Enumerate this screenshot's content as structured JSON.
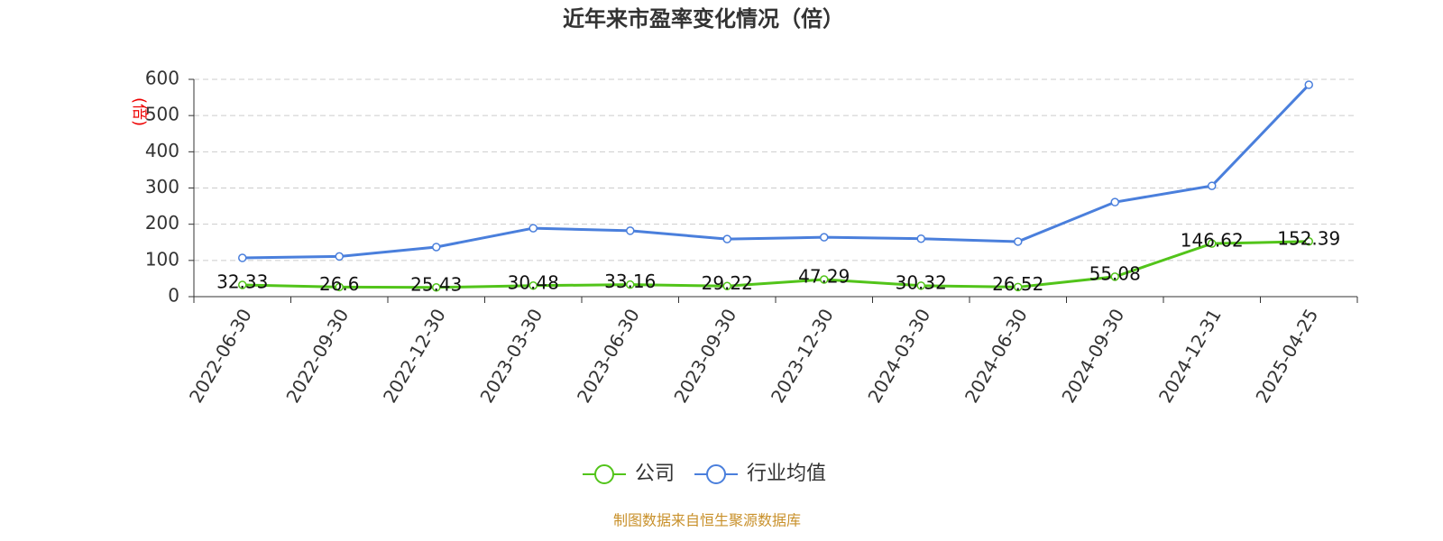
{
  "chart_data": {
    "type": "line",
    "title": "近年来市盈率变化情况（倍）",
    "y_label": "(倍)",
    "source": "制图数据来自恒生聚源数据库",
    "categories": [
      "2022-06-30",
      "2022-09-30",
      "2022-12-30",
      "2023-03-30",
      "2023-06-30",
      "2023-09-30",
      "2023-12-30",
      "2024-03-30",
      "2024-06-30",
      "2024-09-30",
      "2024-12-31",
      "2025-04-25"
    ],
    "series": [
      {
        "name": "公司",
        "color": "#52c41a",
        "show_labels": true,
        "values": [
          32.33,
          26.6,
          25.43,
          30.48,
          33.16,
          29.22,
          47.29,
          30.32,
          26.52,
          55.08,
          146.62,
          152.39
        ]
      },
      {
        "name": "行业均值",
        "color": "#4a7fdc",
        "show_labels": false,
        "values": [
          107,
          111,
          137,
          189,
          182,
          159,
          164,
          160,
          152,
          261,
          306,
          585
        ]
      }
    ],
    "ylim": [
      0,
      600
    ],
    "yticks": [
      0,
      100,
      200,
      300,
      400,
      500,
      600
    ],
    "grid": true
  }
}
